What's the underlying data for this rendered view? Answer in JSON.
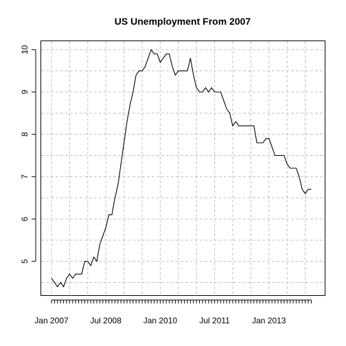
{
  "chart_data": {
    "type": "line",
    "title": "US Unemployment From 2007",
    "xlabel": "",
    "ylabel": "",
    "x_start": "2007-01",
    "x_frequency": "monthly",
    "x_tick_labels": [
      "Jan 2007",
      "Jul 2008",
      "Jan 2010",
      "Jul 2011",
      "Jan 2013"
    ],
    "y_ticks": [
      5,
      6,
      7,
      8,
      9,
      10
    ],
    "ylim": [
      4.2,
      10.2
    ],
    "grid": true,
    "series": [
      {
        "color": "#000000",
        "values": [
          4.6,
          4.5,
          4.4,
          4.5,
          4.4,
          4.6,
          4.7,
          4.6,
          4.7,
          4.7,
          4.7,
          5.0,
          5.0,
          4.9,
          5.1,
          5.0,
          5.4,
          5.6,
          5.8,
          6.1,
          6.1,
          6.5,
          6.8,
          7.3,
          7.8,
          8.3,
          8.7,
          9.0,
          9.4,
          9.5,
          9.5,
          9.6,
          9.8,
          10.0,
          9.9,
          9.9,
          9.7,
          9.8,
          9.9,
          9.9,
          9.6,
          9.4,
          9.5,
          9.5,
          9.5,
          9.5,
          9.8,
          9.4,
          9.1,
          9.0,
          9.0,
          9.1,
          9.0,
          9.1,
          9.0,
          9.0,
          9.0,
          8.8,
          8.6,
          8.5,
          8.2,
          8.3,
          8.2,
          8.2,
          8.2,
          8.2,
          8.2,
          8.2,
          7.8,
          7.8,
          7.8,
          7.9,
          7.9,
          7.7,
          7.5,
          7.5,
          7.5,
          7.5,
          7.3,
          7.2,
          7.2,
          7.2,
          7.0,
          6.7,
          6.6,
          6.7,
          6.7
        ]
      }
    ]
  }
}
